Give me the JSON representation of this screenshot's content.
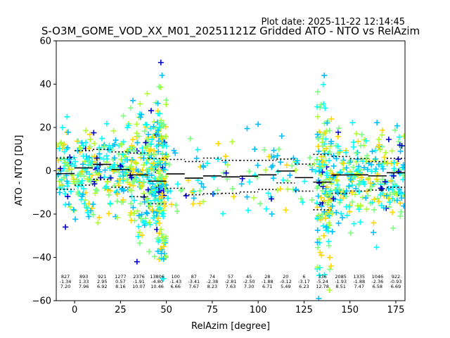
{
  "chart_data": {
    "type": "scatter",
    "plot_date": "Plot date: 2025-11-22 12:14:45",
    "title": "S-O3M_GOME_VOD_XX_M01_20251121Z Gridded ATO - NTO vs RelAzim",
    "xlabel": "RelAzim [degree]",
    "ylabel": "ATO - NTO [DU]",
    "xlim": [
      -10,
      180
    ],
    "ylim": [
      -60,
      60
    ],
    "x_ticks": [
      0,
      25,
      50,
      75,
      100,
      125,
      150,
      175
    ],
    "y_ticks": [
      -60,
      -40,
      -20,
      0,
      20,
      40,
      60
    ],
    "grid": false,
    "marker": "+",
    "series_colors": [
      "#0000cd",
      "#00bfff",
      "#00ffff",
      "#7fff7f",
      "#adff2f",
      "#ffd700"
    ],
    "bins": [
      {
        "x": -5,
        "count": "827",
        "mean": -1.34,
        "sd": 7.2,
        "mean_label": "-1.34",
        "sd_label": "7.20"
      },
      {
        "x": 5,
        "count": "893",
        "mean": 1.33,
        "sd": 7.96,
        "mean_label": "1.33",
        "sd_label": "7.96"
      },
      {
        "x": 15,
        "count": "921",
        "mean": 2.95,
        "sd": 6.92,
        "mean_label": "2.95",
        "sd_label": "6.92"
      },
      {
        "x": 25,
        "count": "1277",
        "mean": 0.57,
        "sd": 8.16,
        "mean_label": "0.57",
        "sd_label": "8.16"
      },
      {
        "x": 35,
        "count": "2376",
        "mean": -1.91,
        "sd": 10.07,
        "mean_label": "-1.91",
        "sd_label": "10.07"
      },
      {
        "x": 45,
        "count": "13806",
        "mean": -4.8,
        "sd": 10.46,
        "mean_label": "-4.80",
        "sd_label": "10.46"
      },
      {
        "x": 55,
        "count": "100",
        "mean": -1.43,
        "sd": 6.66,
        "mean_label": "-1.43",
        "sd_label": "6.66"
      },
      {
        "x": 65,
        "count": "87",
        "mean": -3.41,
        "sd": 7.67,
        "mean_label": "-3.41",
        "sd_label": "7.67"
      },
      {
        "x": 75,
        "count": "74",
        "mean": -2.38,
        "sd": 8.23,
        "mean_label": "-2.38",
        "sd_label": "8.23"
      },
      {
        "x": 85,
        "count": "57",
        "mean": -2.81,
        "sd": 7.63,
        "mean_label": "-2.81",
        "sd_label": "7.63"
      },
      {
        "x": 95,
        "count": "45",
        "mean": -2.5,
        "sd": 7.3,
        "mean_label": "-2.50",
        "sd_label": "7.30"
      },
      {
        "x": 105,
        "count": "28",
        "mean": -1.88,
        "sd": 6.71,
        "mean_label": "-1.88",
        "sd_label": "6.71"
      },
      {
        "x": 115,
        "count": "20",
        "mean": -0.12,
        "sd": 5.49,
        "mean_label": "-0.12",
        "sd_label": "5.49"
      },
      {
        "x": 125,
        "count": "6",
        "mean": -3.17,
        "sd": 6.23,
        "mean_label": "-3.17",
        "sd_label": "6.23"
      },
      {
        "x": 135,
        "count": "336",
        "mean": -5.24,
        "sd": 12.78,
        "mean_label": "-5.24",
        "sd_label": "12.78"
      },
      {
        "x": 145,
        "count": "2085",
        "mean": -1.93,
        "sd": 8.51,
        "mean_label": "-1.93",
        "sd_label": "8.51"
      },
      {
        "x": 155,
        "count": "1335",
        "mean": -1.88,
        "sd": 7.47,
        "mean_label": "-1.88",
        "sd_label": "7.47"
      },
      {
        "x": 165,
        "count": "1046",
        "mean": -2.36,
        "sd": 6.58,
        "mean_label": "-2.36",
        "sd_label": "6.58"
      },
      {
        "x": 175,
        "count": "922",
        "mean": -0.93,
        "sd": 6.69,
        "mean_label": "-0.93",
        "sd_label": "6.69"
      }
    ],
    "scatter_clusters": [
      {
        "x_range": [
          -10,
          10
        ],
        "y_center": 0,
        "y_spread": 10,
        "points": 140
      },
      {
        "x_range": [
          10,
          30
        ],
        "y_center": 1,
        "y_spread": 10,
        "points": 140
      },
      {
        "x_range": [
          30,
          45
        ],
        "y_center": -3,
        "y_spread": 16,
        "points": 200
      },
      {
        "x_range": [
          45,
          50
        ],
        "y_center": -5,
        "y_spread": 20,
        "points": 150
      },
      {
        "x_range": [
          50,
          132
        ],
        "y_center": -2,
        "y_spread": 8,
        "points": 110
      },
      {
        "x_range": [
          132,
          140
        ],
        "y_center": -6,
        "y_spread": 20,
        "points": 150
      },
      {
        "x_range": [
          140,
          180
        ],
        "y_center": -2,
        "y_spread": 11,
        "points": 260
      }
    ],
    "outliers": [
      {
        "x": 47,
        "y": 50
      },
      {
        "x": 136,
        "y": 44
      },
      {
        "x": 34,
        "y": -42
      },
      {
        "x": 133,
        "y": -59
      },
      {
        "x": -5,
        "y": -26
      },
      {
        "x": 94,
        "y": 19.5
      }
    ]
  }
}
